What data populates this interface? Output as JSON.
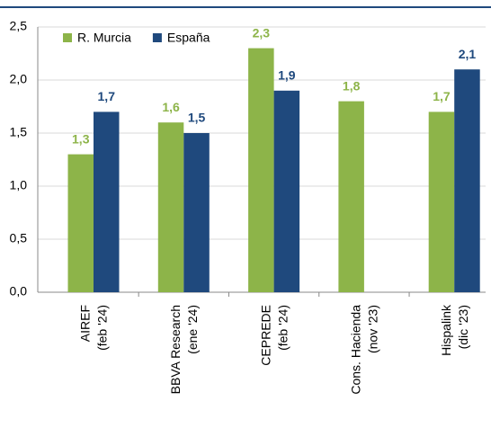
{
  "chart_data": {
    "type": "bar",
    "categories": [
      [
        "AIREF",
        "(feb '24)"
      ],
      [
        "BBVA Research",
        "(ene '24)"
      ],
      [
        "CEPREDE",
        "(feb '24)"
      ],
      [
        "Cons. Hacienda",
        "(nov '23)"
      ],
      [
        "Hispalink",
        "(dic '23)"
      ]
    ],
    "series": [
      {
        "name": "R. Murcia",
        "color": "#8db449",
        "values": [
          1.3,
          1.6,
          2.3,
          1.8,
          1.7
        ],
        "value_labels": [
          "1,3",
          "1,6",
          "2,3",
          "1,8",
          "1,7"
        ]
      },
      {
        "name": "España",
        "color": "#1f497d",
        "values": [
          1.7,
          1.5,
          1.9,
          null,
          2.1
        ],
        "value_labels": [
          "1,7",
          "1,5",
          "1,9",
          null,
          "2,1"
        ]
      }
    ],
    "ylim": [
      0,
      2.5
    ],
    "yticks": [
      {
        "value": 0,
        "label": "0,0"
      },
      {
        "value": 0.5,
        "label": "0,5"
      },
      {
        "value": 1,
        "label": "1,0"
      },
      {
        "value": 1.5,
        "label": "1,5"
      },
      {
        "value": 2,
        "label": "2,0"
      },
      {
        "value": 2.5,
        "label": "2,5"
      }
    ],
    "grid": true,
    "legend": "top-left"
  }
}
